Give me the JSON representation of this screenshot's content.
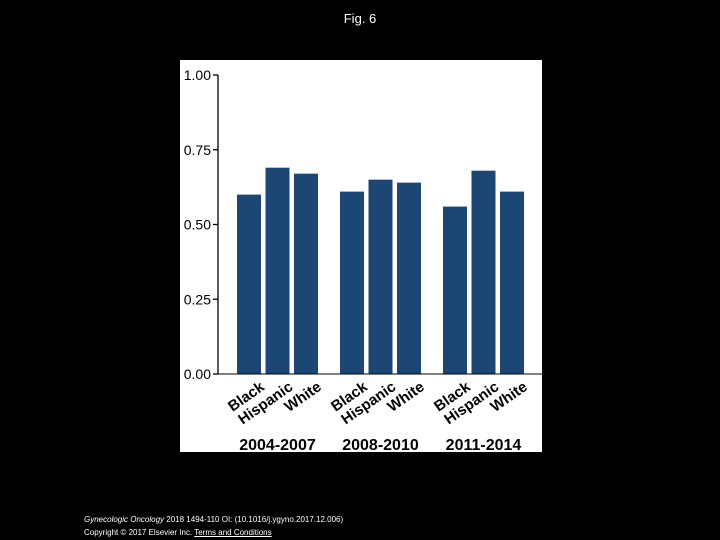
{
  "page": {
    "title": "Fig. 6",
    "citation_journal": "Gynecologic Oncology",
    "citation_rest": " 2018 1494-110 OI: (10.1016/j.ygyno.2017.12.006)",
    "copyright": "Copyright © 2017 Elsevier Inc. ",
    "terms_link": "Terms and Conditions"
  },
  "chart_data": {
    "type": "bar",
    "title": "",
    "xlabel": "",
    "ylabel": "",
    "ylim": [
      0,
      1
    ],
    "yticks": [
      "0.00",
      "0.25",
      "0.50",
      "0.75",
      "1.00"
    ],
    "ytick_values": [
      0,
      0.25,
      0.5,
      0.75,
      1.0
    ],
    "grid": false,
    "legend": "none",
    "bar_color": "#1c4774",
    "groups": [
      {
        "label": "2004-2007",
        "categories": [
          "Black",
          "Hispanic",
          "White"
        ],
        "values": [
          0.6,
          0.69,
          0.67
        ]
      },
      {
        "label": "2008-2010",
        "categories": [
          "Black",
          "Hispanic",
          "White"
        ],
        "values": [
          0.61,
          0.65,
          0.64
        ]
      },
      {
        "label": "2011-2014",
        "categories": [
          "Black",
          "Hispanic",
          "White"
        ],
        "values": [
          0.56,
          0.68,
          0.61
        ]
      }
    ]
  }
}
